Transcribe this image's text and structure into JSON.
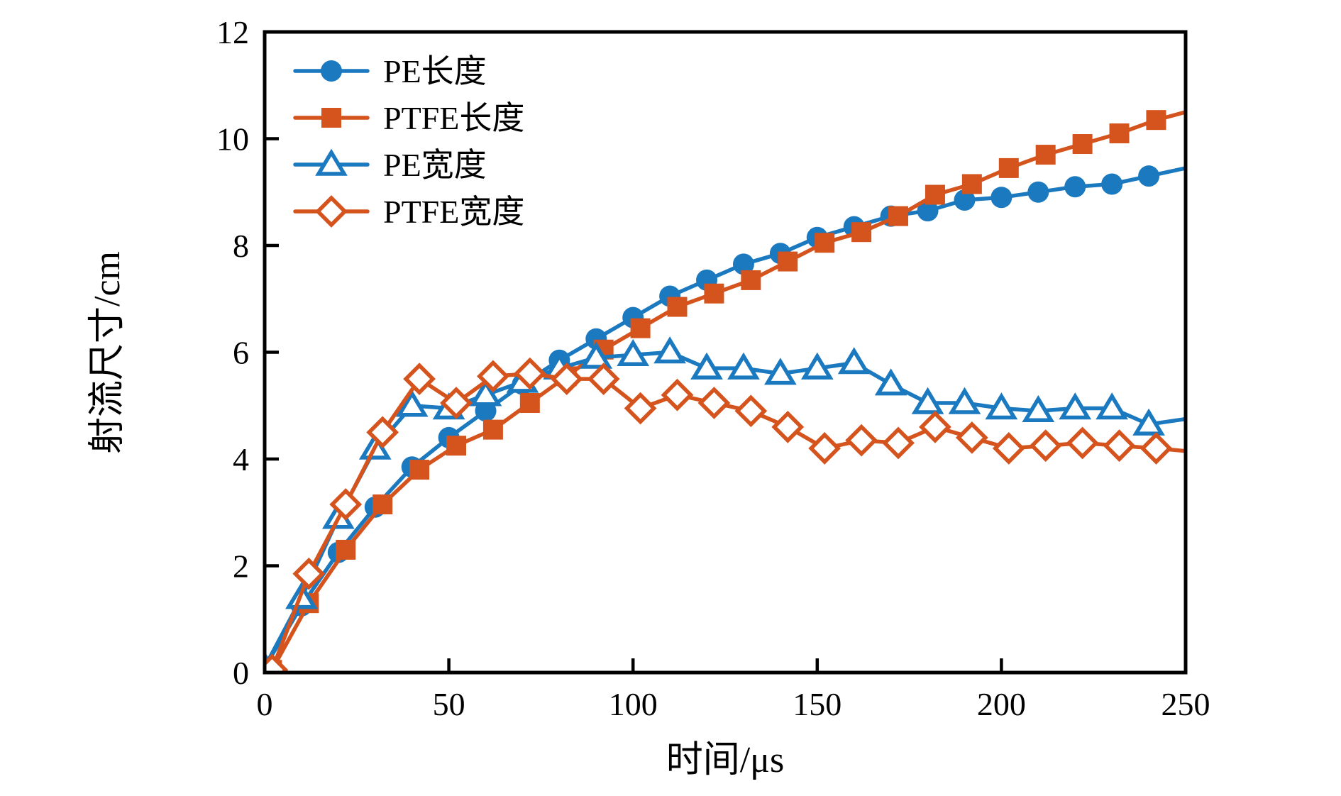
{
  "figure": {
    "background": "#ffffff",
    "axis_color": "#000000"
  },
  "legend": {
    "entries": [
      "PE长度",
      "PTFE长度",
      "PE宽度",
      "PTFE宽度"
    ]
  },
  "chart_data": {
    "type": "line",
    "title": "",
    "xlabel": "时间/μs",
    "ylabel": "射流尺寸/cm",
    "xlim": [
      0,
      250
    ],
    "ylim": [
      0,
      12
    ],
    "x_ticks": [
      0,
      50,
      100,
      150,
      200,
      250
    ],
    "y_ticks": [
      0,
      2,
      4,
      6,
      8,
      10,
      12
    ],
    "grid": false,
    "legend_position": "upper-left-inside",
    "series": [
      {
        "name": "PE长度",
        "color": "#1b79c0",
        "marker": "circle",
        "marker_filled": true,
        "x": [
          0,
          10,
          20,
          30,
          40,
          50,
          60,
          70,
          80,
          90,
          100,
          110,
          120,
          130,
          140,
          150,
          160,
          170,
          180,
          190,
          200,
          210,
          220,
          230,
          240
        ],
        "y": [
          0.1,
          1.25,
          2.25,
          3.1,
          3.85,
          4.4,
          4.9,
          5.4,
          5.85,
          6.25,
          6.65,
          7.05,
          7.35,
          7.65,
          7.85,
          8.15,
          8.35,
          8.55,
          8.65,
          8.85,
          8.9,
          9.0,
          9.1,
          9.15,
          9.3
        ],
        "line_end": {
          "x": 250,
          "y": 9.45
        }
      },
      {
        "name": "PTFE长度",
        "color": "#d5531c",
        "marker": "square",
        "marker_filled": true,
        "x": [
          2,
          12,
          22,
          32,
          42,
          52,
          62,
          72,
          82,
          92,
          102,
          112,
          122,
          132,
          142,
          152,
          162,
          172,
          182,
          192,
          202,
          212,
          222,
          232,
          242
        ],
        "y": [
          0.05,
          1.3,
          2.3,
          3.15,
          3.8,
          4.25,
          4.55,
          5.05,
          5.55,
          6.05,
          6.45,
          6.85,
          7.1,
          7.35,
          7.7,
          8.05,
          8.25,
          8.55,
          8.95,
          9.15,
          9.45,
          9.7,
          9.9,
          10.1,
          10.35
        ],
        "line_end": {
          "x": 250,
          "y": 10.5
        }
      },
      {
        "name": "PE宽度",
        "color": "#1b79c0",
        "marker": "triangle",
        "marker_filled": false,
        "x": [
          0,
          10,
          20,
          30,
          40,
          50,
          60,
          70,
          80,
          90,
          100,
          110,
          120,
          130,
          140,
          150,
          160,
          170,
          180,
          190,
          200,
          210,
          220,
          230,
          240
        ],
        "y": [
          0.1,
          1.4,
          2.9,
          4.2,
          5.0,
          4.95,
          5.2,
          5.45,
          5.7,
          5.9,
          5.95,
          6.0,
          5.7,
          5.7,
          5.6,
          5.7,
          5.8,
          5.4,
          5.05,
          5.05,
          4.95,
          4.9,
          4.95,
          4.95,
          4.65
        ],
        "line_end": {
          "x": 250,
          "y": 4.75
        }
      },
      {
        "name": "PTFE宽度",
        "color": "#d5531c",
        "marker": "diamond",
        "marker_filled": false,
        "x": [
          2,
          12,
          22,
          32,
          42,
          52,
          62,
          72,
          82,
          92,
          102,
          112,
          122,
          132,
          142,
          152,
          162,
          172,
          182,
          192,
          202,
          212,
          222,
          232,
          242
        ],
        "y": [
          0.05,
          1.85,
          3.15,
          4.5,
          5.5,
          5.05,
          5.55,
          5.6,
          5.5,
          5.5,
          4.95,
          5.2,
          5.05,
          4.9,
          4.6,
          4.2,
          4.35,
          4.3,
          4.6,
          4.4,
          4.2,
          4.25,
          4.3,
          4.25,
          4.2
        ],
        "line_end": {
          "x": 250,
          "y": 4.15
        }
      }
    ]
  }
}
